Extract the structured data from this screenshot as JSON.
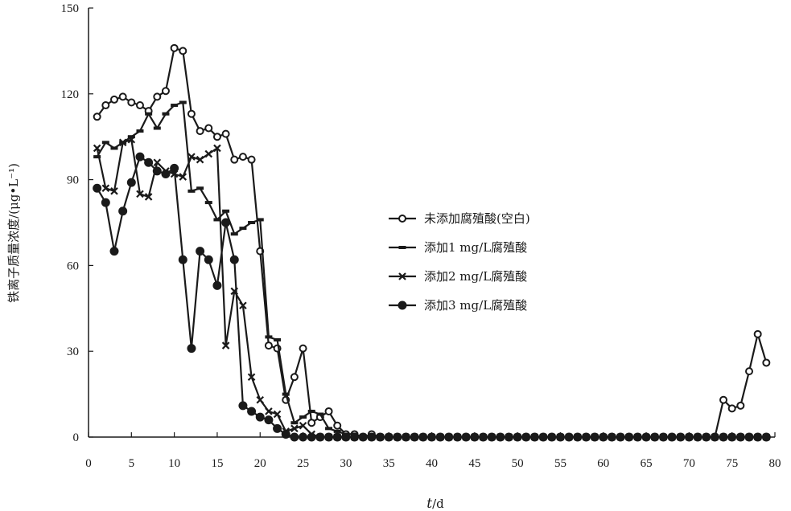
{
  "chart_data": {
    "type": "line",
    "title": "",
    "xlabel_italic": "t",
    "xlabel_unit": "/d",
    "ylabel": "铁离子质量浓度/(μg•L⁻¹)",
    "xlim": [
      0,
      80
    ],
    "ylim": [
      0,
      150
    ],
    "xticks": [
      0,
      5,
      10,
      15,
      20,
      25,
      30,
      35,
      40,
      45,
      50,
      55,
      60,
      65,
      70,
      75,
      80
    ],
    "yticks": [
      0,
      30,
      60,
      90,
      120,
      150
    ],
    "grid": false,
    "legend_position": "center-right",
    "series": [
      {
        "name": "未添加腐殖酸(空白)",
        "marker": "open-circle",
        "color": "#1a1a1a",
        "points": [
          [
            1,
            112
          ],
          [
            2,
            116
          ],
          [
            3,
            118
          ],
          [
            4,
            119
          ],
          [
            5,
            117
          ],
          [
            6,
            116
          ],
          [
            7,
            114
          ],
          [
            8,
            119
          ],
          [
            9,
            121
          ],
          [
            10,
            136
          ],
          [
            11,
            135
          ],
          [
            12,
            113
          ],
          [
            13,
            107
          ],
          [
            14,
            108
          ],
          [
            15,
            105
          ],
          [
            16,
            106
          ],
          [
            17,
            97
          ],
          [
            18,
            98
          ],
          [
            19,
            97
          ],
          [
            20,
            65
          ],
          [
            21,
            32
          ],
          [
            22,
            31
          ],
          [
            23,
            13
          ],
          [
            24,
            21
          ],
          [
            25,
            31
          ],
          [
            26,
            5
          ],
          [
            27,
            7
          ],
          [
            28,
            9
          ],
          [
            29,
            4
          ],
          [
            30,
            1
          ],
          [
            31,
            1
          ],
          [
            32,
            0
          ],
          [
            33,
            1
          ],
          [
            34,
            0
          ],
          [
            35,
            0
          ],
          [
            36,
            0
          ],
          [
            37,
            0
          ],
          [
            38,
            0
          ],
          [
            39,
            0
          ],
          [
            40,
            0
          ],
          [
            41,
            0
          ],
          [
            42,
            0
          ],
          [
            43,
            0
          ],
          [
            44,
            0
          ],
          [
            45,
            0
          ],
          [
            46,
            0
          ],
          [
            47,
            0
          ],
          [
            48,
            0
          ],
          [
            49,
            0
          ],
          [
            50,
            0
          ],
          [
            51,
            0
          ],
          [
            52,
            0
          ],
          [
            53,
            0
          ],
          [
            54,
            0
          ],
          [
            55,
            0
          ],
          [
            56,
            0
          ],
          [
            57,
            0
          ],
          [
            58,
            0
          ],
          [
            59,
            0
          ],
          [
            60,
            0
          ],
          [
            61,
            0
          ],
          [
            62,
            0
          ],
          [
            63,
            0
          ],
          [
            64,
            0
          ],
          [
            65,
            0
          ],
          [
            66,
            0
          ],
          [
            67,
            0
          ],
          [
            68,
            0
          ],
          [
            69,
            0
          ],
          [
            70,
            0
          ],
          [
            71,
            0
          ],
          [
            72,
            0
          ],
          [
            73,
            0
          ],
          [
            74,
            13
          ],
          [
            75,
            10
          ],
          [
            76,
            11
          ],
          [
            77,
            23
          ],
          [
            78,
            36
          ],
          [
            79,
            26
          ]
        ]
      },
      {
        "name": "添加1 mg/L腐殖酸",
        "marker": "dash",
        "color": "#1a1a1a",
        "points": [
          [
            1,
            98
          ],
          [
            2,
            103
          ],
          [
            3,
            101
          ],
          [
            4,
            103
          ],
          [
            5,
            105
          ],
          [
            6,
            107
          ],
          [
            7,
            113
          ],
          [
            8,
            108
          ],
          [
            9,
            113
          ],
          [
            10,
            116
          ],
          [
            11,
            117
          ],
          [
            12,
            86
          ],
          [
            13,
            87
          ],
          [
            14,
            82
          ],
          [
            15,
            76
          ],
          [
            16,
            79
          ],
          [
            17,
            71
          ],
          [
            18,
            73
          ],
          [
            19,
            75
          ],
          [
            20,
            76
          ],
          [
            21,
            35
          ],
          [
            22,
            34
          ],
          [
            23,
            15
          ],
          [
            24,
            5
          ],
          [
            25,
            7
          ],
          [
            26,
            9
          ],
          [
            27,
            8
          ],
          [
            28,
            3
          ],
          [
            29,
            2
          ],
          [
            30,
            1
          ],
          [
            31,
            1
          ],
          [
            32,
            0
          ],
          [
            33,
            0
          ],
          [
            34,
            0
          ],
          [
            35,
            0
          ],
          [
            36,
            0
          ],
          [
            37,
            0
          ],
          [
            38,
            0
          ],
          [
            39,
            0
          ],
          [
            40,
            0
          ],
          [
            41,
            0
          ],
          [
            42,
            0
          ],
          [
            43,
            0
          ],
          [
            44,
            0
          ],
          [
            45,
            0
          ],
          [
            46,
            0
          ],
          [
            47,
            0
          ],
          [
            48,
            0
          ],
          [
            49,
            0
          ],
          [
            50,
            0
          ],
          [
            51,
            0
          ],
          [
            52,
            0
          ],
          [
            53,
            0
          ],
          [
            54,
            0
          ],
          [
            55,
            0
          ],
          [
            56,
            0
          ],
          [
            57,
            0
          ],
          [
            58,
            0
          ],
          [
            59,
            0
          ],
          [
            60,
            0
          ],
          [
            61,
            0
          ],
          [
            62,
            0
          ],
          [
            63,
            0
          ],
          [
            64,
            0
          ],
          [
            65,
            0
          ],
          [
            66,
            0
          ],
          [
            67,
            0
          ],
          [
            68,
            0
          ],
          [
            69,
            0
          ],
          [
            70,
            0
          ],
          [
            71,
            0
          ],
          [
            72,
            0
          ],
          [
            73,
            0
          ],
          [
            74,
            0
          ],
          [
            75,
            0
          ],
          [
            76,
            0
          ],
          [
            77,
            0
          ],
          [
            78,
            0
          ],
          [
            79,
            0
          ]
        ]
      },
      {
        "name": "添加2 mg/L腐殖酸",
        "marker": "x",
        "color": "#1a1a1a",
        "points": [
          [
            1,
            101
          ],
          [
            2,
            87
          ],
          [
            3,
            86
          ],
          [
            4,
            103
          ],
          [
            5,
            104
          ],
          [
            6,
            85
          ],
          [
            7,
            84
          ],
          [
            8,
            96
          ],
          [
            9,
            93
          ],
          [
            10,
            92
          ],
          [
            11,
            91
          ],
          [
            12,
            98
          ],
          [
            13,
            97
          ],
          [
            14,
            99
          ],
          [
            15,
            101
          ],
          [
            16,
            32
          ],
          [
            17,
            51
          ],
          [
            18,
            46
          ],
          [
            19,
            21
          ],
          [
            20,
            13
          ],
          [
            21,
            9
          ],
          [
            22,
            8
          ],
          [
            23,
            2
          ],
          [
            24,
            3
          ],
          [
            25,
            4
          ],
          [
            26,
            1
          ],
          [
            27,
            0
          ],
          [
            28,
            0
          ],
          [
            29,
            0
          ],
          [
            30,
            0
          ],
          [
            31,
            0
          ],
          [
            32,
            0
          ],
          [
            33,
            0
          ],
          [
            34,
            0
          ],
          [
            35,
            0
          ],
          [
            36,
            0
          ],
          [
            37,
            0
          ],
          [
            38,
            0
          ],
          [
            39,
            0
          ],
          [
            40,
            0
          ],
          [
            41,
            0
          ],
          [
            42,
            0
          ],
          [
            43,
            0
          ],
          [
            44,
            0
          ],
          [
            45,
            0
          ],
          [
            46,
            0
          ],
          [
            47,
            0
          ],
          [
            48,
            0
          ],
          [
            49,
            0
          ],
          [
            50,
            0
          ],
          [
            51,
            0
          ],
          [
            52,
            0
          ],
          [
            53,
            0
          ],
          [
            54,
            0
          ],
          [
            55,
            0
          ],
          [
            56,
            0
          ],
          [
            57,
            0
          ],
          [
            58,
            0
          ],
          [
            59,
            0
          ],
          [
            60,
            0
          ],
          [
            61,
            0
          ],
          [
            62,
            0
          ],
          [
            63,
            0
          ],
          [
            64,
            0
          ],
          [
            65,
            0
          ],
          [
            66,
            0
          ],
          [
            67,
            0
          ],
          [
            68,
            0
          ],
          [
            69,
            0
          ],
          [
            70,
            0
          ],
          [
            71,
            0
          ],
          [
            72,
            0
          ],
          [
            73,
            0
          ],
          [
            74,
            0
          ],
          [
            75,
            0
          ],
          [
            76,
            0
          ],
          [
            77,
            0
          ],
          [
            78,
            0
          ],
          [
            79,
            0
          ]
        ]
      },
      {
        "name": "添加3 mg/L腐殖酸",
        "marker": "filled-circle",
        "color": "#1a1a1a",
        "points": [
          [
            1,
            87
          ],
          [
            2,
            82
          ],
          [
            3,
            65
          ],
          [
            4,
            79
          ],
          [
            5,
            89
          ],
          [
            6,
            98
          ],
          [
            7,
            96
          ],
          [
            8,
            93
          ],
          [
            9,
            92
          ],
          [
            10,
            94
          ],
          [
            11,
            62
          ],
          [
            12,
            31
          ],
          [
            13,
            65
          ],
          [
            14,
            62
          ],
          [
            15,
            53
          ],
          [
            16,
            75
          ],
          [
            17,
            62
          ],
          [
            18,
            11
          ],
          [
            19,
            9
          ],
          [
            20,
            7
          ],
          [
            21,
            6
          ],
          [
            22,
            3
          ],
          [
            23,
            1
          ],
          [
            24,
            0
          ],
          [
            25,
            0
          ],
          [
            26,
            0
          ],
          [
            27,
            0
          ],
          [
            28,
            0
          ],
          [
            29,
            0
          ],
          [
            30,
            0
          ],
          [
            31,
            0
          ],
          [
            32,
            0
          ],
          [
            33,
            0
          ],
          [
            34,
            0
          ],
          [
            35,
            0
          ],
          [
            36,
            0
          ],
          [
            37,
            0
          ],
          [
            38,
            0
          ],
          [
            39,
            0
          ],
          [
            40,
            0
          ],
          [
            41,
            0
          ],
          [
            42,
            0
          ],
          [
            43,
            0
          ],
          [
            44,
            0
          ],
          [
            45,
            0
          ],
          [
            46,
            0
          ],
          [
            47,
            0
          ],
          [
            48,
            0
          ],
          [
            49,
            0
          ],
          [
            50,
            0
          ],
          [
            51,
            0
          ],
          [
            52,
            0
          ],
          [
            53,
            0
          ],
          [
            54,
            0
          ],
          [
            55,
            0
          ],
          [
            56,
            0
          ],
          [
            57,
            0
          ],
          [
            58,
            0
          ],
          [
            59,
            0
          ],
          [
            60,
            0
          ],
          [
            61,
            0
          ],
          [
            62,
            0
          ],
          [
            63,
            0
          ],
          [
            64,
            0
          ],
          [
            65,
            0
          ],
          [
            66,
            0
          ],
          [
            67,
            0
          ],
          [
            68,
            0
          ],
          [
            69,
            0
          ],
          [
            70,
            0
          ],
          [
            71,
            0
          ],
          [
            72,
            0
          ],
          [
            73,
            0
          ],
          [
            74,
            0
          ],
          [
            75,
            0
          ],
          [
            76,
            0
          ],
          [
            77,
            0
          ],
          [
            78,
            0
          ],
          [
            79,
            0
          ]
        ]
      }
    ]
  }
}
